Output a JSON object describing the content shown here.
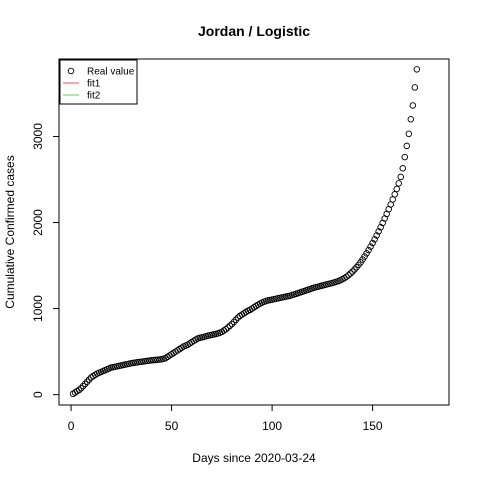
{
  "chart_data": {
    "type": "scatter",
    "title": "Jordan / Logistic",
    "xlabel": "Days since 2020-03-24",
    "ylabel": "Cumulative Confirmed cases",
    "xlim": [
      -6,
      188
    ],
    "ylim": [
      -120,
      3900
    ],
    "xticks": [
      0,
      50,
      100,
      150
    ],
    "yticks": [
      0,
      1000,
      2000,
      3000
    ],
    "grid": false,
    "legend": {
      "position": "top-left",
      "entries": [
        {
          "label": "Real value",
          "symbol": "circle",
          "color": "#000000"
        },
        {
          "label": "fit1",
          "symbol": "line",
          "color": "#DF536B"
        },
        {
          "label": "fit2",
          "symbol": "line",
          "color": "#61D04F"
        }
      ]
    },
    "series": [
      {
        "name": "Real value",
        "points": [
          [
            1,
            10
          ],
          [
            2,
            25
          ],
          [
            3,
            40
          ],
          [
            4,
            55
          ],
          [
            5,
            75
          ],
          [
            6,
            100
          ],
          [
            7,
            125
          ],
          [
            8,
            150
          ],
          [
            9,
            175
          ],
          [
            10,
            200
          ],
          [
            11,
            215
          ],
          [
            12,
            230
          ],
          [
            13,
            245
          ],
          [
            14,
            255
          ],
          [
            15,
            265
          ],
          [
            16,
            275
          ],
          [
            17,
            285
          ],
          [
            18,
            295
          ],
          [
            19,
            305
          ],
          [
            20,
            315
          ],
          [
            21,
            320
          ],
          [
            22,
            325
          ],
          [
            23,
            330
          ],
          [
            24,
            335
          ],
          [
            25,
            340
          ],
          [
            26,
            345
          ],
          [
            27,
            350
          ],
          [
            28,
            355
          ],
          [
            29,
            360
          ],
          [
            30,
            365
          ],
          [
            31,
            370
          ],
          [
            32,
            373
          ],
          [
            33,
            376
          ],
          [
            34,
            380
          ],
          [
            35,
            383
          ],
          [
            36,
            386
          ],
          [
            37,
            390
          ],
          [
            38,
            393
          ],
          [
            39,
            396
          ],
          [
            40,
            400
          ],
          [
            41,
            402
          ],
          [
            42,
            404
          ],
          [
            43,
            406
          ],
          [
            44,
            408
          ],
          [
            45,
            412
          ],
          [
            46,
            418
          ],
          [
            47,
            425
          ],
          [
            48,
            440
          ],
          [
            49,
            455
          ],
          [
            50,
            470
          ],
          [
            51,
            485
          ],
          [
            52,
            500
          ],
          [
            53,
            515
          ],
          [
            54,
            530
          ],
          [
            55,
            545
          ],
          [
            56,
            560
          ],
          [
            57,
            570
          ],
          [
            58,
            580
          ],
          [
            59,
            595
          ],
          [
            60,
            610
          ],
          [
            61,
            625
          ],
          [
            62,
            640
          ],
          [
            63,
            652
          ],
          [
            64,
            660
          ],
          [
            65,
            665
          ],
          [
            66,
            670
          ],
          [
            67,
            678
          ],
          [
            68,
            685
          ],
          [
            69,
            690
          ],
          [
            70,
            695
          ],
          [
            71,
            700
          ],
          [
            72,
            705
          ],
          [
            73,
            712
          ],
          [
            74,
            720
          ],
          [
            75,
            730
          ],
          [
            76,
            745
          ],
          [
            77,
            760
          ],
          [
            78,
            780
          ],
          [
            79,
            800
          ],
          [
            80,
            820
          ],
          [
            81,
            845
          ],
          [
            82,
            870
          ],
          [
            83,
            895
          ],
          [
            84,
            915
          ],
          [
            85,
            930
          ],
          [
            86,
            945
          ],
          [
            87,
            960
          ],
          [
            88,
            975
          ],
          [
            89,
            985
          ],
          [
            90,
            1000
          ],
          [
            91,
            1015
          ],
          [
            92,
            1030
          ],
          [
            93,
            1045
          ],
          [
            94,
            1058
          ],
          [
            95,
            1070
          ],
          [
            96,
            1080
          ],
          [
            97,
            1088
          ],
          [
            98,
            1095
          ],
          [
            99,
            1100
          ],
          [
            100,
            1105
          ],
          [
            101,
            1110
          ],
          [
            102,
            1115
          ],
          [
            103,
            1120
          ],
          [
            104,
            1125
          ],
          [
            105,
            1130
          ],
          [
            106,
            1135
          ],
          [
            107,
            1140
          ],
          [
            108,
            1145
          ],
          [
            109,
            1150
          ],
          [
            110,
            1158
          ],
          [
            111,
            1165
          ],
          [
            112,
            1172
          ],
          [
            113,
            1180
          ],
          [
            114,
            1188
          ],
          [
            115,
            1196
          ],
          [
            116,
            1204
          ],
          [
            117,
            1212
          ],
          [
            118,
            1220
          ],
          [
            119,
            1228
          ],
          [
            120,
            1236
          ],
          [
            121,
            1244
          ],
          [
            122,
            1250
          ],
          [
            123,
            1256
          ],
          [
            124,
            1262
          ],
          [
            125,
            1268
          ],
          [
            126,
            1274
          ],
          [
            127,
            1280
          ],
          [
            128,
            1286
          ],
          [
            129,
            1292
          ],
          [
            130,
            1298
          ],
          [
            131,
            1305
          ],
          [
            132,
            1312
          ],
          [
            133,
            1320
          ],
          [
            134,
            1330
          ],
          [
            135,
            1342
          ],
          [
            136,
            1355
          ],
          [
            137,
            1370
          ],
          [
            138,
            1388
          ],
          [
            139,
            1408
          ],
          [
            140,
            1430
          ],
          [
            141,
            1455
          ],
          [
            142,
            1480
          ],
          [
            143,
            1508
          ],
          [
            144,
            1538
          ],
          [
            145,
            1570
          ],
          [
            146,
            1605
          ],
          [
            147,
            1642
          ],
          [
            148,
            1680
          ],
          [
            149,
            1720
          ],
          [
            150,
            1762
          ],
          [
            151,
            1805
          ],
          [
            152,
            1850
          ],
          [
            153,
            1897
          ],
          [
            154,
            1945
          ],
          [
            155,
            1995
          ],
          [
            156,
            2047
          ],
          [
            157,
            2100
          ],
          [
            158,
            2155
          ],
          [
            159,
            2210
          ],
          [
            160,
            2268
          ],
          [
            161,
            2328
          ],
          [
            162,
            2390
          ],
          [
            163,
            2455
          ],
          [
            164,
            2530
          ],
          [
            165,
            2630
          ],
          [
            166,
            2760
          ],
          [
            167,
            2890
          ],
          [
            168,
            3030
          ],
          [
            169,
            3200
          ],
          [
            170,
            3360
          ],
          [
            171,
            3570
          ],
          [
            172,
            3780
          ]
        ]
      }
    ]
  }
}
